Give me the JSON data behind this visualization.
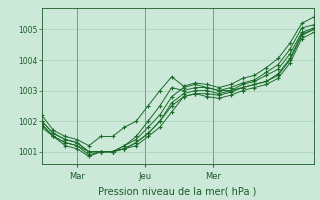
{
  "title": "",
  "xlabel": "Pression niveau de la mer( hPa )",
  "ylabel": "",
  "background_color": "#cce8d8",
  "plot_bg_color": "#cce8d8",
  "grid_color": "#99ccaa",
  "line_color": "#1a6b2a",
  "tick_color": "#1a5c28",
  "ylim": [
    1000.6,
    1005.7
  ],
  "yticks": [
    1001,
    1002,
    1003,
    1004,
    1005
  ],
  "xtick_labels": [
    "Mar",
    "Jeu",
    "Mer"
  ],
  "xtick_positions": [
    0.13,
    0.38,
    0.63
  ],
  "series": [
    [
      1002.2,
      1001.7,
      1001.5,
      1001.4,
      1001.2,
      1001.5,
      1001.5,
      1001.8,
      1002.0,
      1002.5,
      1003.0,
      1003.45,
      1003.15,
      1003.25,
      1003.2,
      1003.1,
      1003.2,
      1003.4,
      1003.5,
      1003.75,
      1004.05,
      1004.55,
      1005.2,
      1005.4
    ],
    [
      1002.0,
      1001.6,
      1001.4,
      1001.3,
      1001.0,
      1001.0,
      1001.0,
      1001.2,
      1001.5,
      1002.0,
      1002.5,
      1003.1,
      1003.0,
      1003.1,
      1003.1,
      1003.0,
      1003.1,
      1003.25,
      1003.35,
      1003.6,
      1003.85,
      1004.35,
      1005.05,
      1005.15
    ],
    [
      1002.0,
      1001.6,
      1001.4,
      1001.3,
      1001.0,
      1001.0,
      1001.0,
      1001.2,
      1001.4,
      1001.8,
      1002.2,
      1002.8,
      1003.1,
      1003.2,
      1003.1,
      1003.0,
      1003.0,
      1003.2,
      1003.3,
      1003.5,
      1003.7,
      1004.2,
      1004.9,
      1005.05
    ],
    [
      1001.9,
      1001.5,
      1001.3,
      1001.2,
      1001.0,
      1001.0,
      1001.0,
      1001.1,
      1001.3,
      1001.6,
      1002.0,
      1002.6,
      1002.9,
      1003.0,
      1003.0,
      1002.9,
      1003.0,
      1003.1,
      1003.2,
      1003.3,
      1003.5,
      1004.0,
      1004.8,
      1005.0
    ],
    [
      1001.8,
      1001.5,
      1001.2,
      1001.1,
      1000.85,
      1001.0,
      1001.0,
      1001.1,
      1001.2,
      1001.5,
      1001.8,
      1002.3,
      1002.8,
      1002.9,
      1002.8,
      1002.75,
      1002.85,
      1003.0,
      1003.1,
      1003.2,
      1003.4,
      1003.9,
      1004.7,
      1004.9
    ],
    [
      1001.9,
      1001.5,
      1001.3,
      1001.2,
      1000.9,
      1001.0,
      1001.0,
      1001.1,
      1001.3,
      1001.6,
      1002.0,
      1002.5,
      1002.8,
      1002.9,
      1002.9,
      1002.85,
      1002.95,
      1003.1,
      1003.2,
      1003.3,
      1003.55,
      1004.05,
      1004.85,
      1005.0
    ]
  ]
}
